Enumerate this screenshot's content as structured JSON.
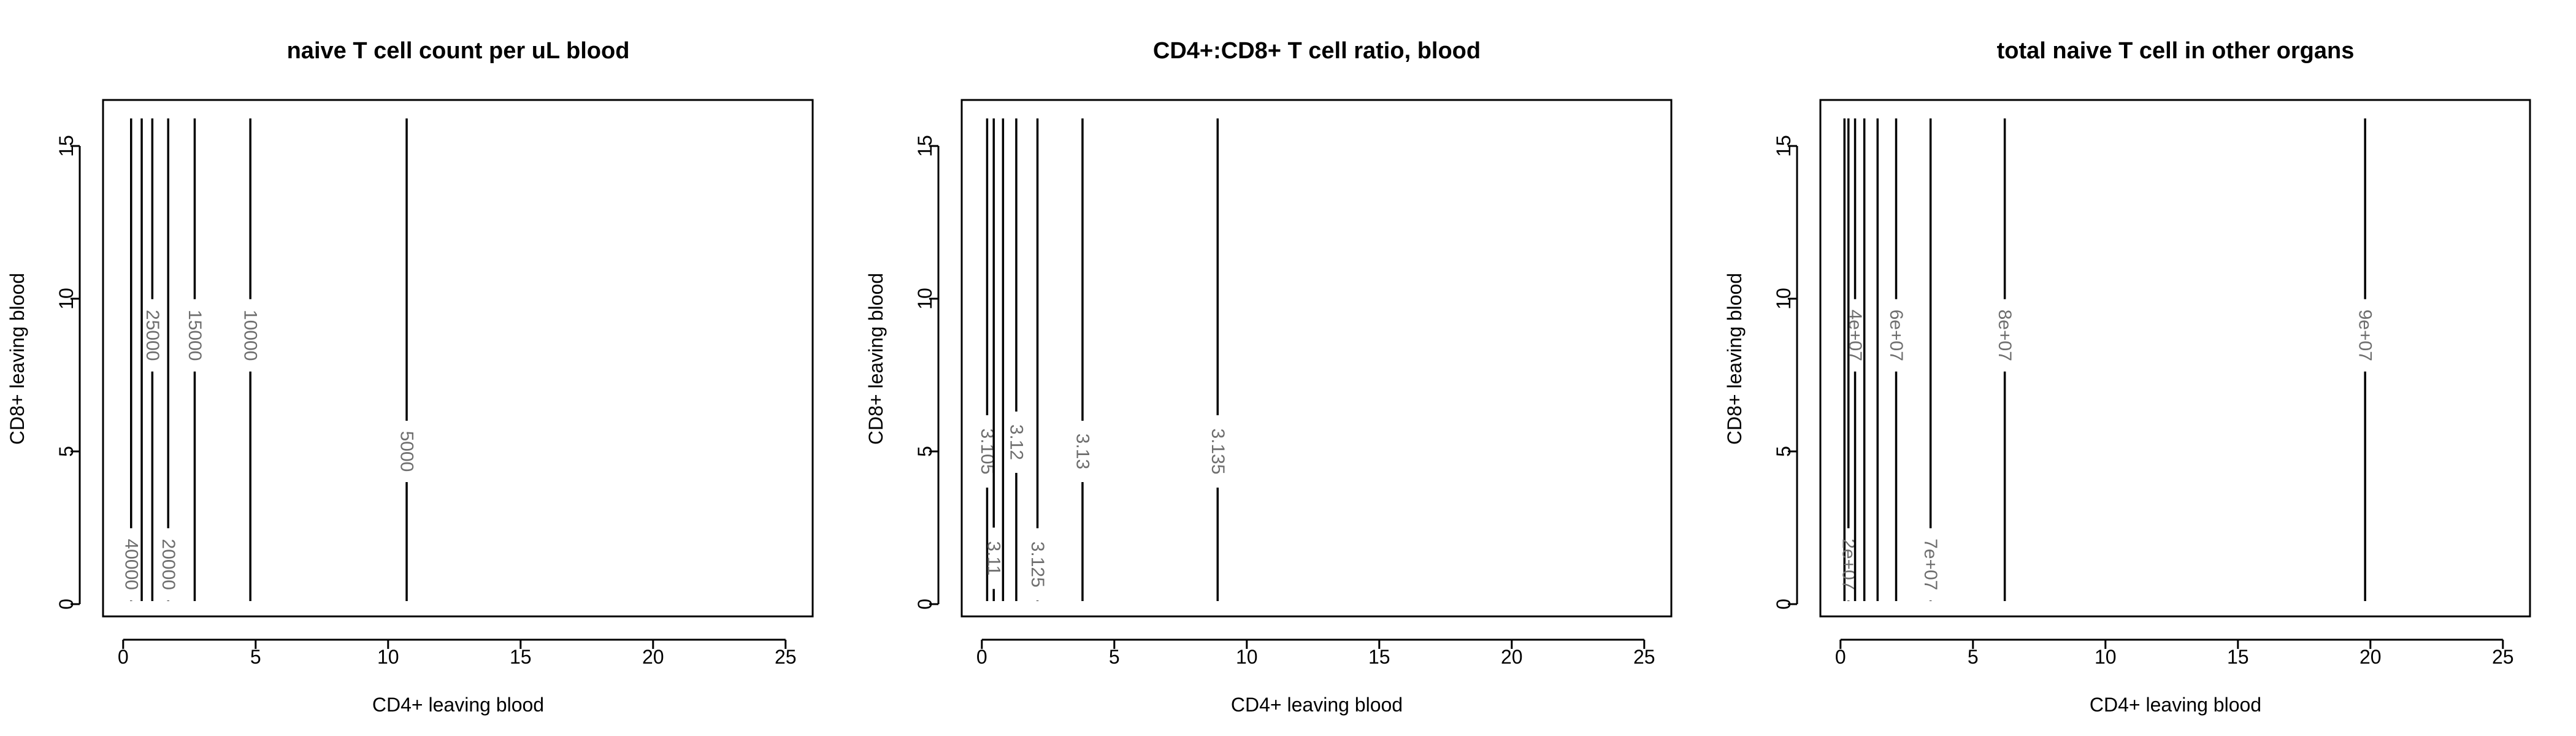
{
  "chart_data": [
    {
      "type": "contour",
      "title": "naive T cell count per uL blood",
      "xlabel": "CD4+ leaving blood",
      "ylabel": "CD8+ leaving blood",
      "xlim": [
        0,
        25
      ],
      "ylim": [
        0,
        16
      ],
      "xticks": [
        0,
        5,
        10,
        15,
        20,
        25
      ],
      "yticks": [
        0,
        5,
        10,
        15
      ],
      "xtick_labels": [
        "0",
        "5",
        "10",
        "15",
        "20",
        "25"
      ],
      "ytick_labels": [
        "0",
        "5",
        "10",
        "15"
      ],
      "y_range": [
        0.1,
        15.9
      ],
      "grid": false,
      "contours": [
        {
          "x": 0.3,
          "label": "40000",
          "label_y": 1.3
        },
        {
          "x": 0.7,
          "label": "",
          "label_y": null
        },
        {
          "x": 1.1,
          "label": "25000",
          "label_y": 8.8
        },
        {
          "x": 1.7,
          "label": "20000",
          "label_y": 1.3
        },
        {
          "x": 2.7,
          "label": "15000",
          "label_y": 8.8
        },
        {
          "x": 4.8,
          "label": "10000",
          "label_y": 8.8
        },
        {
          "x": 10.7,
          "label": "5000",
          "label_y": 5.0
        }
      ]
    },
    {
      "type": "contour",
      "title": "CD4+:CD8+ T cell ratio, blood",
      "xlabel": "CD4+ leaving blood",
      "ylabel": "CD8+ leaving blood",
      "xlim": [
        0,
        25
      ],
      "ylim": [
        0,
        16
      ],
      "xticks": [
        0,
        5,
        10,
        15,
        20,
        25
      ],
      "yticks": [
        0,
        5,
        10,
        15
      ],
      "xtick_labels": [
        "0",
        "5",
        "10",
        "15",
        "20",
        "25"
      ],
      "ytick_labels": [
        "0",
        "5",
        "10",
        "15"
      ],
      "y_range": [
        0.1,
        15.9
      ],
      "grid": false,
      "contours": [
        {
          "x": 0.2,
          "label": "3.105",
          "label_y": 5.0
        },
        {
          "x": 0.45,
          "label": "3.11",
          "label_y": 1.5
        },
        {
          "x": 0.8,
          "label": "",
          "label_y": null
        },
        {
          "x": 1.3,
          "label": "3.12",
          "label_y": 5.3
        },
        {
          "x": 2.1,
          "label": "3.125",
          "label_y": 1.3
        },
        {
          "x": 3.8,
          "label": "3.13",
          "label_y": 5.0
        },
        {
          "x": 8.9,
          "label": "3.135",
          "label_y": 5.0
        }
      ]
    },
    {
      "type": "contour",
      "title": "total naive T cell in other organs",
      "xlabel": "CD4+ leaving blood",
      "ylabel": "CD8+ leaving blood",
      "xlim": [
        0,
        25
      ],
      "ylim": [
        0,
        16
      ],
      "xticks": [
        0,
        5,
        10,
        15,
        20,
        25
      ],
      "yticks": [
        0,
        5,
        10,
        15
      ],
      "xtick_labels": [
        "0",
        "5",
        "10",
        "15",
        "20",
        "25"
      ],
      "ytick_labels": [
        "0",
        "5",
        "10",
        "15"
      ],
      "y_range": [
        0.1,
        15.9
      ],
      "grid": false,
      "contours": [
        {
          "x": 0.15,
          "label": "",
          "label_y": null
        },
        {
          "x": 0.3,
          "label": "2e+07",
          "label_y": 1.3
        },
        {
          "x": 0.55,
          "label": "4e+07",
          "label_y": 8.8
        },
        {
          "x": 0.9,
          "label": "",
          "label_y": null
        },
        {
          "x": 1.4,
          "label": "",
          "label_y": null
        },
        {
          "x": 2.1,
          "label": "6e+07",
          "label_y": 8.8
        },
        {
          "x": 3.4,
          "label": "7e+07",
          "label_y": 1.3
        },
        {
          "x": 6.2,
          "label": "8e+07",
          "label_y": 8.8
        },
        {
          "x": 19.8,
          "label": "9e+07",
          "label_y": 8.8
        }
      ]
    }
  ]
}
